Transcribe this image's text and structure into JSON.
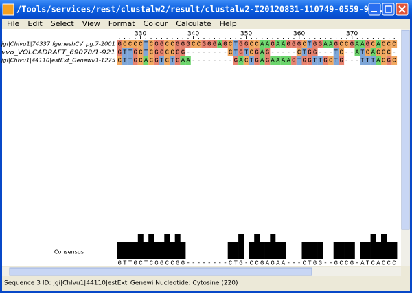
{
  "window": {
    "title": "/Tools/services/rest/clustalw2/result/clustalw2-I20120831-110749-0559-9..."
  },
  "menu": [
    "File",
    "Edit",
    "Select",
    "View",
    "Format",
    "Colour",
    "Calculate",
    "Help"
  ],
  "ruler": {
    "ticks": [
      330,
      340,
      350,
      360,
      370
    ]
  },
  "residue_colors": {
    "A": "#6cd46c",
    "C": "#f2a860",
    "G": "#e7826f",
    "T": "#7ea6d8"
  },
  "sequences": [
    {
      "name": "jgi|Chlvu1|74337|fgeneshCV_pg.7-2001",
      "residues": "GCCCCTCGGCCGGGCCGGGAGCTGGCCAAGAAGGGCTGGAAGCCGAAGCACCC"
    },
    {
      "name": "vvo_VOLCADRAFT_69078/1-921",
      "residues": "GTTGCTCGGCCGG--------CTGTCGAG-----CTGG---TC--ATCACCC-"
    },
    {
      "name": "jgi|Chlvu1|44110|estExt_Genewi/1-1275",
      "residues": "CTTGCACGTCTGAA--------GACTGAGAAAAGTGGTTGCTG---TTTACGC"
    }
  ],
  "consensus": {
    "label": "Consensus",
    "sequence": "GTTGCTCGGCCGG--------CTG-CCGAGAA---CTGG--GCCG-ATCACCC",
    "heights": [
      67,
      67,
      67,
      67,
      100,
      67,
      100,
      67,
      67,
      100,
      67,
      100,
      67,
      0,
      0,
      0,
      0,
      0,
      0,
      0,
      0,
      67,
      67,
      100,
      0,
      67,
      100,
      67,
      67,
      100,
      67,
      67,
      0,
      0,
      0,
      67,
      67,
      67,
      67,
      0,
      0,
      67,
      67,
      67,
      67,
      0,
      67,
      67,
      100,
      67,
      100,
      67,
      67
    ]
  },
  "status": "Sequence 3 ID: jgi|Chlvu1|44110|estExt_Genewi Nucleotide: Cytosine (220)"
}
